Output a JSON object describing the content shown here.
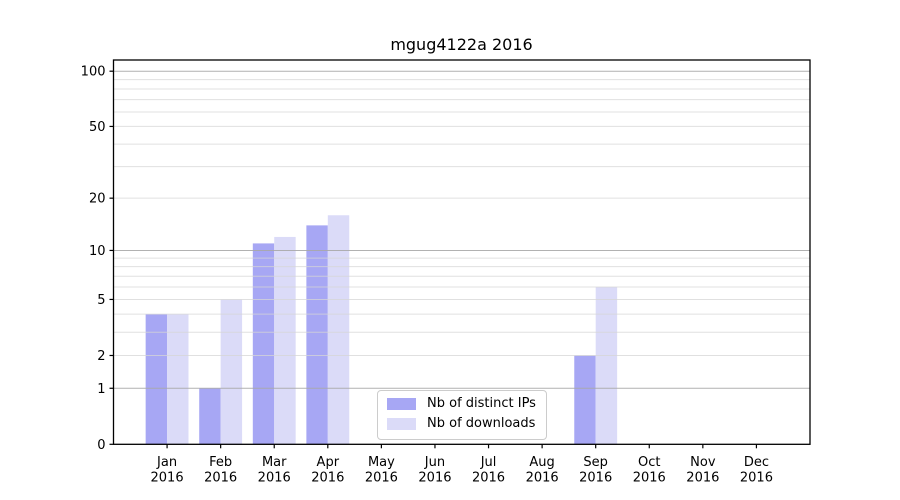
{
  "chart_data": {
    "type": "bar",
    "title": "mgug4122a 2016",
    "categories": [
      "Jan",
      "Feb",
      "Mar",
      "Apr",
      "May",
      "Jun",
      "Jul",
      "Aug",
      "Sep",
      "Oct",
      "Nov",
      "Dec"
    ],
    "x_tick_year": "2016",
    "series": [
      {
        "name": "Nb of distinct IPs",
        "color": "#a7a7f4",
        "values": [
          4,
          1,
          11,
          14,
          0,
          0,
          0,
          0,
          2,
          0,
          0,
          0
        ]
      },
      {
        "name": "Nb of downloads",
        "color": "#dbdbf8",
        "values": [
          4,
          5,
          12,
          16,
          0,
          0,
          0,
          0,
          6,
          0,
          0,
          0
        ]
      }
    ],
    "xlabel": "",
    "ylabel": "",
    "y_axis": {
      "scale": "log1p",
      "tick_values": [
        0,
        1,
        2,
        5,
        10,
        20,
        50,
        100
      ],
      "major_gridline_values": [
        1,
        10,
        100
      ],
      "minor_gridline_values": [
        2,
        3,
        4,
        5,
        6,
        7,
        8,
        9,
        20,
        30,
        40,
        50,
        60,
        70,
        80,
        90
      ],
      "ymax": 115
    },
    "grid": true,
    "legend": {
      "position": "bottom-center",
      "items": [
        {
          "label": "Nb of distinct IPs",
          "color": "#a7a7f4"
        },
        {
          "label": "Nb of downloads",
          "color": "#dbdbf8"
        }
      ]
    },
    "colors": {
      "background": "#ffffff",
      "axis": "#000000",
      "major_grid": "#a8a8a8",
      "minor_grid": "#d6d6d6",
      "text": "#000000"
    }
  }
}
